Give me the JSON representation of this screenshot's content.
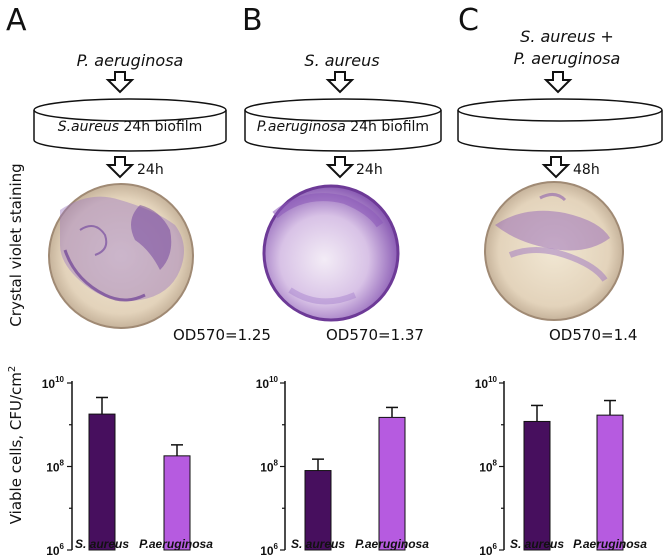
{
  "panels": [
    {
      "letter": "A",
      "added_line1": "P. aeruginosa",
      "added_line2": "",
      "dish_italic": "S.aureus",
      "dish_rest": " 24h biofilm",
      "hours": "24h",
      "od_prefix": "OD",
      "od_sub": "570",
      "od_value": "=1.25"
    },
    {
      "letter": "B",
      "added_line1": "S. aureus",
      "added_line2": "",
      "dish_italic": "P.aeruginosa",
      "dish_rest": " 24h biofilm",
      "hours": "24h",
      "od_prefix": "OD",
      "od_sub": "570",
      "od_value": "=1.37"
    },
    {
      "letter": "C",
      "added_line1": "S. aureus +",
      "added_line2": "P. aeruginosa",
      "dish_italic": "",
      "dish_rest": "",
      "hours": "48h",
      "od_prefix": "OD",
      "od_sub": "570",
      "od_value": "=1.4"
    }
  ],
  "side_label_top": "Crystal violet staining",
  "side_label_bottom": "Viable cells, CFU/cm",
  "side_label_bottom_sup": "2",
  "colors": {
    "s_aureus": "#470f5e",
    "p_aeruginosa": "#b65be0",
    "stain": "#8a5bb5",
    "plate": "#e6d9c0"
  },
  "chart_data": [
    {
      "type": "bar",
      "panel": "A",
      "categories": [
        "S. aureus",
        "P.aeruginosa"
      ],
      "values": [
        1800000000,
        180000000
      ],
      "error_upper": [
        4500000000,
        330000000
      ],
      "yscale": "log",
      "ylim": [
        1000000,
        10000000000
      ],
      "yticks": [
        "10",
        "10",
        "10"
      ],
      "ytick_exponents": [
        "6",
        "8",
        "10"
      ]
    },
    {
      "type": "bar",
      "panel": "B",
      "categories": [
        "S. aureus",
        "P.aeruginosa"
      ],
      "values": [
        80000000,
        1500000000
      ],
      "error_upper": [
        150000000,
        2600000000
      ],
      "yscale": "log",
      "ylim": [
        1000000,
        10000000000
      ],
      "yticks": [
        "10",
        "10",
        "10"
      ],
      "ytick_exponents": [
        "6",
        "8",
        "10"
      ]
    },
    {
      "type": "bar",
      "panel": "C",
      "categories": [
        "S. aureus",
        "P.aeruginosa"
      ],
      "values": [
        1200000000,
        1700000000
      ],
      "error_upper": [
        2900000000,
        3800000000
      ],
      "yscale": "log",
      "ylim": [
        1000000,
        10000000000
      ],
      "yticks": [
        "10",
        "10",
        "10"
      ],
      "ytick_exponents": [
        "6",
        "8",
        "10"
      ]
    }
  ]
}
